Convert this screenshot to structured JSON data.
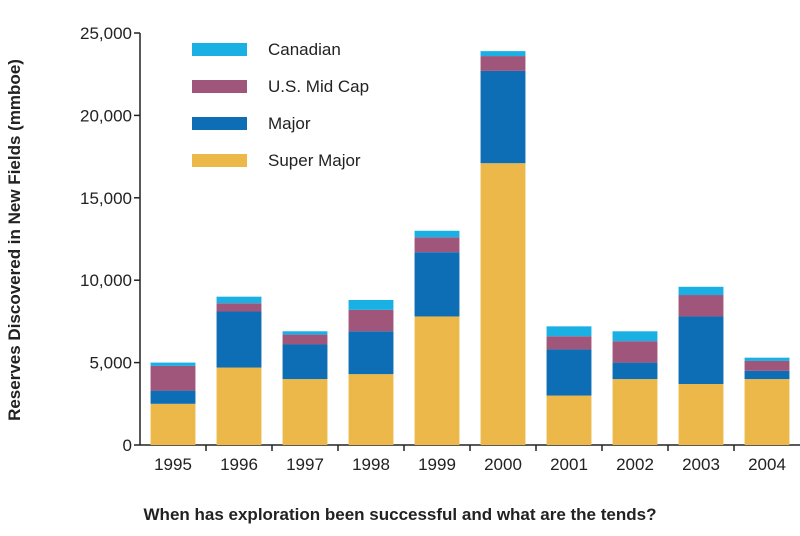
{
  "chart_data": {
    "type": "bar",
    "stacked": true,
    "categories": [
      "1995",
      "1996",
      "1997",
      "1998",
      "1999",
      "2000",
      "2001",
      "2002",
      "2003",
      "2004"
    ],
    "series": [
      {
        "name": "Super Major",
        "color": "#ecb84a",
        "values": [
          2500,
          4700,
          4000,
          4300,
          7800,
          17100,
          3000,
          4000,
          3700,
          4000
        ]
      },
      {
        "name": "Major",
        "color": "#0d6db5",
        "values": [
          800,
          3400,
          2100,
          2600,
          3900,
          5600,
          2800,
          1000,
          4100,
          500
        ]
      },
      {
        "name": "U.S. Mid Cap",
        "color": "#a0557a",
        "values": [
          1500,
          500,
          600,
          1300,
          900,
          900,
          800,
          1300,
          1300,
          600
        ]
      },
      {
        "name": "Canadian",
        "color": "#1bb0e4",
        "values": [
          200,
          400,
          200,
          600,
          400,
          300,
          600,
          600,
          500,
          200
        ]
      }
    ],
    "legend_order": [
      "Canadian",
      "U.S. Mid Cap",
      "Major",
      "Super Major"
    ],
    "legend_position": "top-left",
    "ylabel": "Reserves Discovered in New Fields (mmboe)",
    "xlabel": "",
    "ylim": [
      0,
      25000
    ],
    "yticks": [
      0,
      5000,
      10000,
      15000,
      20000,
      25000
    ],
    "ytick_labels": [
      "0",
      "5,000",
      "10,000",
      "15,000",
      "20,000",
      "25,000"
    ],
    "grid": false
  },
  "caption": "When has exploration been successful and what are the tends?"
}
